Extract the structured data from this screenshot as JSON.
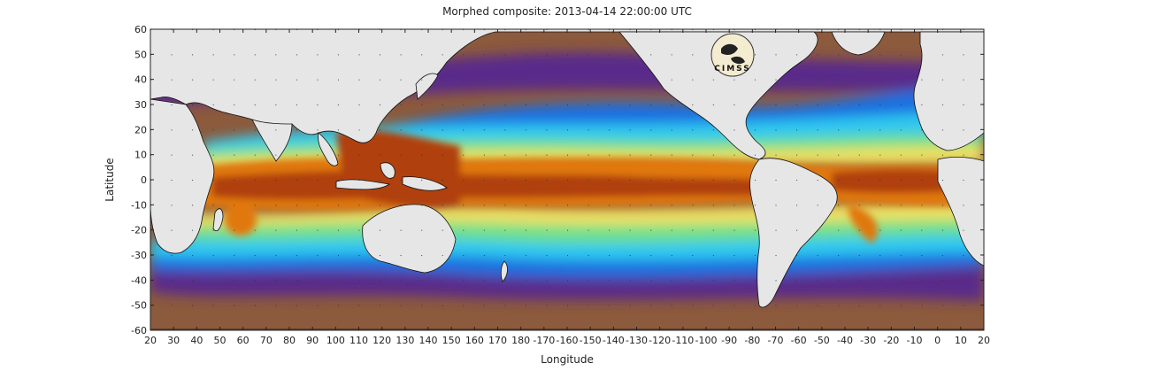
{
  "title": "Morphed composite: 2013-04-14 22:00:00 UTC",
  "xlabel": "Longitude",
  "ylabel": "Latitude",
  "logo_text": "CIMSS",
  "x_ticks": [
    "20",
    "30",
    "40",
    "50",
    "60",
    "70",
    "80",
    "90",
    "100",
    "110",
    "120",
    "130",
    "140",
    "150",
    "160",
    "170",
    "180",
    "-170",
    "-160",
    "-150",
    "-140",
    "-130",
    "-120",
    "-110",
    "-100",
    "-90",
    "-80",
    "-70",
    "-60",
    "-50",
    "-40",
    "-30",
    "-20",
    "-10",
    "0",
    "10",
    "20"
  ],
  "y_ticks": [
    "60",
    "50",
    "40",
    "30",
    "20",
    "10",
    "0",
    "-10",
    "-20",
    "-30",
    "-40",
    "-50",
    "-60"
  ],
  "colors": {
    "land": "#e6e6e6",
    "ocean_dry": "#8c5a3c",
    "purple": "#5a2a8a",
    "blue": "#1f6fe0",
    "cyan": "#2fc8f0",
    "green": "#6fe08a",
    "yellow": "#f0e060",
    "orange": "#e0780a",
    "brown": "#b0400a"
  }
}
